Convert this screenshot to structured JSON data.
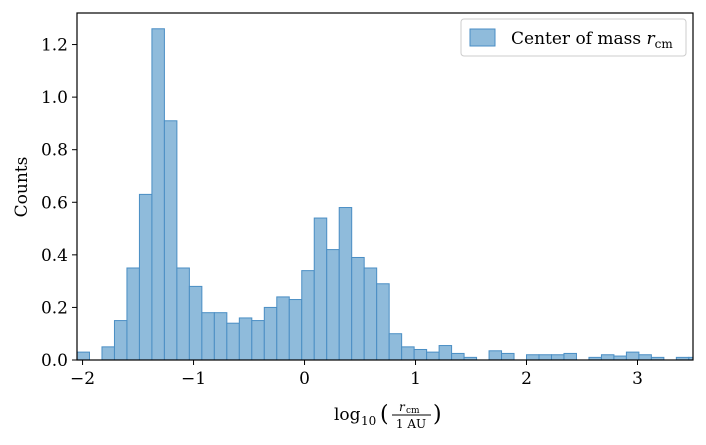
{
  "chart_data": {
    "type": "bar",
    "subtype": "histogram",
    "ylabel": "Counts",
    "xlabel": "log10 (r_cm / 1 AU)",
    "xlabel_parts": {
      "func": "log",
      "sub": "10",
      "num": "r",
      "num_sub": "cm",
      "den": "1 AU"
    },
    "xlim": [
      -2.05,
      3.5
    ],
    "ylim": [
      0,
      1.32
    ],
    "xticks": [
      -2,
      -1,
      0,
      1,
      2,
      3
    ],
    "xtick_labels": [
      "−2",
      "−1",
      "0",
      "1",
      "2",
      "3"
    ],
    "yticks": [
      0,
      0.2,
      0.4,
      0.6,
      0.8,
      1.0,
      1.2
    ],
    "ytick_labels": [
      "0.0",
      "0.2",
      "0.4",
      "0.6",
      "0.8",
      "1.0",
      "1.2"
    ],
    "bin_width": 0.1125,
    "bins": [
      {
        "x0": -2.05,
        "h": 0.03
      },
      {
        "x0": -1.9375,
        "h": 0.0
      },
      {
        "x0": -1.825,
        "h": 0.05
      },
      {
        "x0": -1.7125,
        "h": 0.15
      },
      {
        "x0": -1.6,
        "h": 0.35
      },
      {
        "x0": -1.4875,
        "h": 0.63
      },
      {
        "x0": -1.375,
        "h": 1.26
      },
      {
        "x0": -1.2625,
        "h": 0.91
      },
      {
        "x0": -1.15,
        "h": 0.35
      },
      {
        "x0": -1.0375,
        "h": 0.28
      },
      {
        "x0": -0.925,
        "h": 0.18
      },
      {
        "x0": -0.8125,
        "h": 0.18
      },
      {
        "x0": -0.7,
        "h": 0.14
      },
      {
        "x0": -0.5875,
        "h": 0.16
      },
      {
        "x0": -0.475,
        "h": 0.15
      },
      {
        "x0": -0.3625,
        "h": 0.2
      },
      {
        "x0": -0.25,
        "h": 0.24
      },
      {
        "x0": -0.1375,
        "h": 0.23
      },
      {
        "x0": -0.025,
        "h": 0.34
      },
      {
        "x0": 0.0875,
        "h": 0.54
      },
      {
        "x0": 0.2,
        "h": 0.42
      },
      {
        "x0": 0.3125,
        "h": 0.58
      },
      {
        "x0": 0.425,
        "h": 0.39
      },
      {
        "x0": 0.5375,
        "h": 0.35
      },
      {
        "x0": 0.65,
        "h": 0.29
      },
      {
        "x0": 0.7625,
        "h": 0.1
      },
      {
        "x0": 0.875,
        "h": 0.05
      },
      {
        "x0": 0.9875,
        "h": 0.04
      },
      {
        "x0": 1.1,
        "h": 0.03
      },
      {
        "x0": 1.2125,
        "h": 0.055
      },
      {
        "x0": 1.325,
        "h": 0.025
      },
      {
        "x0": 1.4375,
        "h": 0.01
      },
      {
        "x0": 1.55,
        "h": 0.0
      },
      {
        "x0": 1.6625,
        "h": 0.035
      },
      {
        "x0": 1.775,
        "h": 0.025
      },
      {
        "x0": 1.8875,
        "h": 0.0
      },
      {
        "x0": 2.0,
        "h": 0.02
      },
      {
        "x0": 2.1125,
        "h": 0.02
      },
      {
        "x0": 2.225,
        "h": 0.02
      },
      {
        "x0": 2.3375,
        "h": 0.025
      },
      {
        "x0": 2.45,
        "h": 0.0
      },
      {
        "x0": 2.5625,
        "h": 0.01
      },
      {
        "x0": 2.675,
        "h": 0.02
      },
      {
        "x0": 2.7875,
        "h": 0.015
      },
      {
        "x0": 2.9,
        "h": 0.03
      },
      {
        "x0": 3.0125,
        "h": 0.02
      },
      {
        "x0": 3.125,
        "h": 0.01
      },
      {
        "x0": 3.2375,
        "h": 0.0
      },
      {
        "x0": 3.35,
        "h": 0.01
      },
      {
        "x0": 3.4625,
        "h": 0.01
      }
    ],
    "series": [
      {
        "name": "Center of mass r_cm",
        "name_text": "Center of mass ",
        "name_var": "r",
        "name_sub": "cm"
      }
    ],
    "legend_position": "top-right",
    "colors": {
      "fill": "#8fbbdb",
      "edge": "#4a8ec4",
      "axis": "#000000"
    }
  }
}
